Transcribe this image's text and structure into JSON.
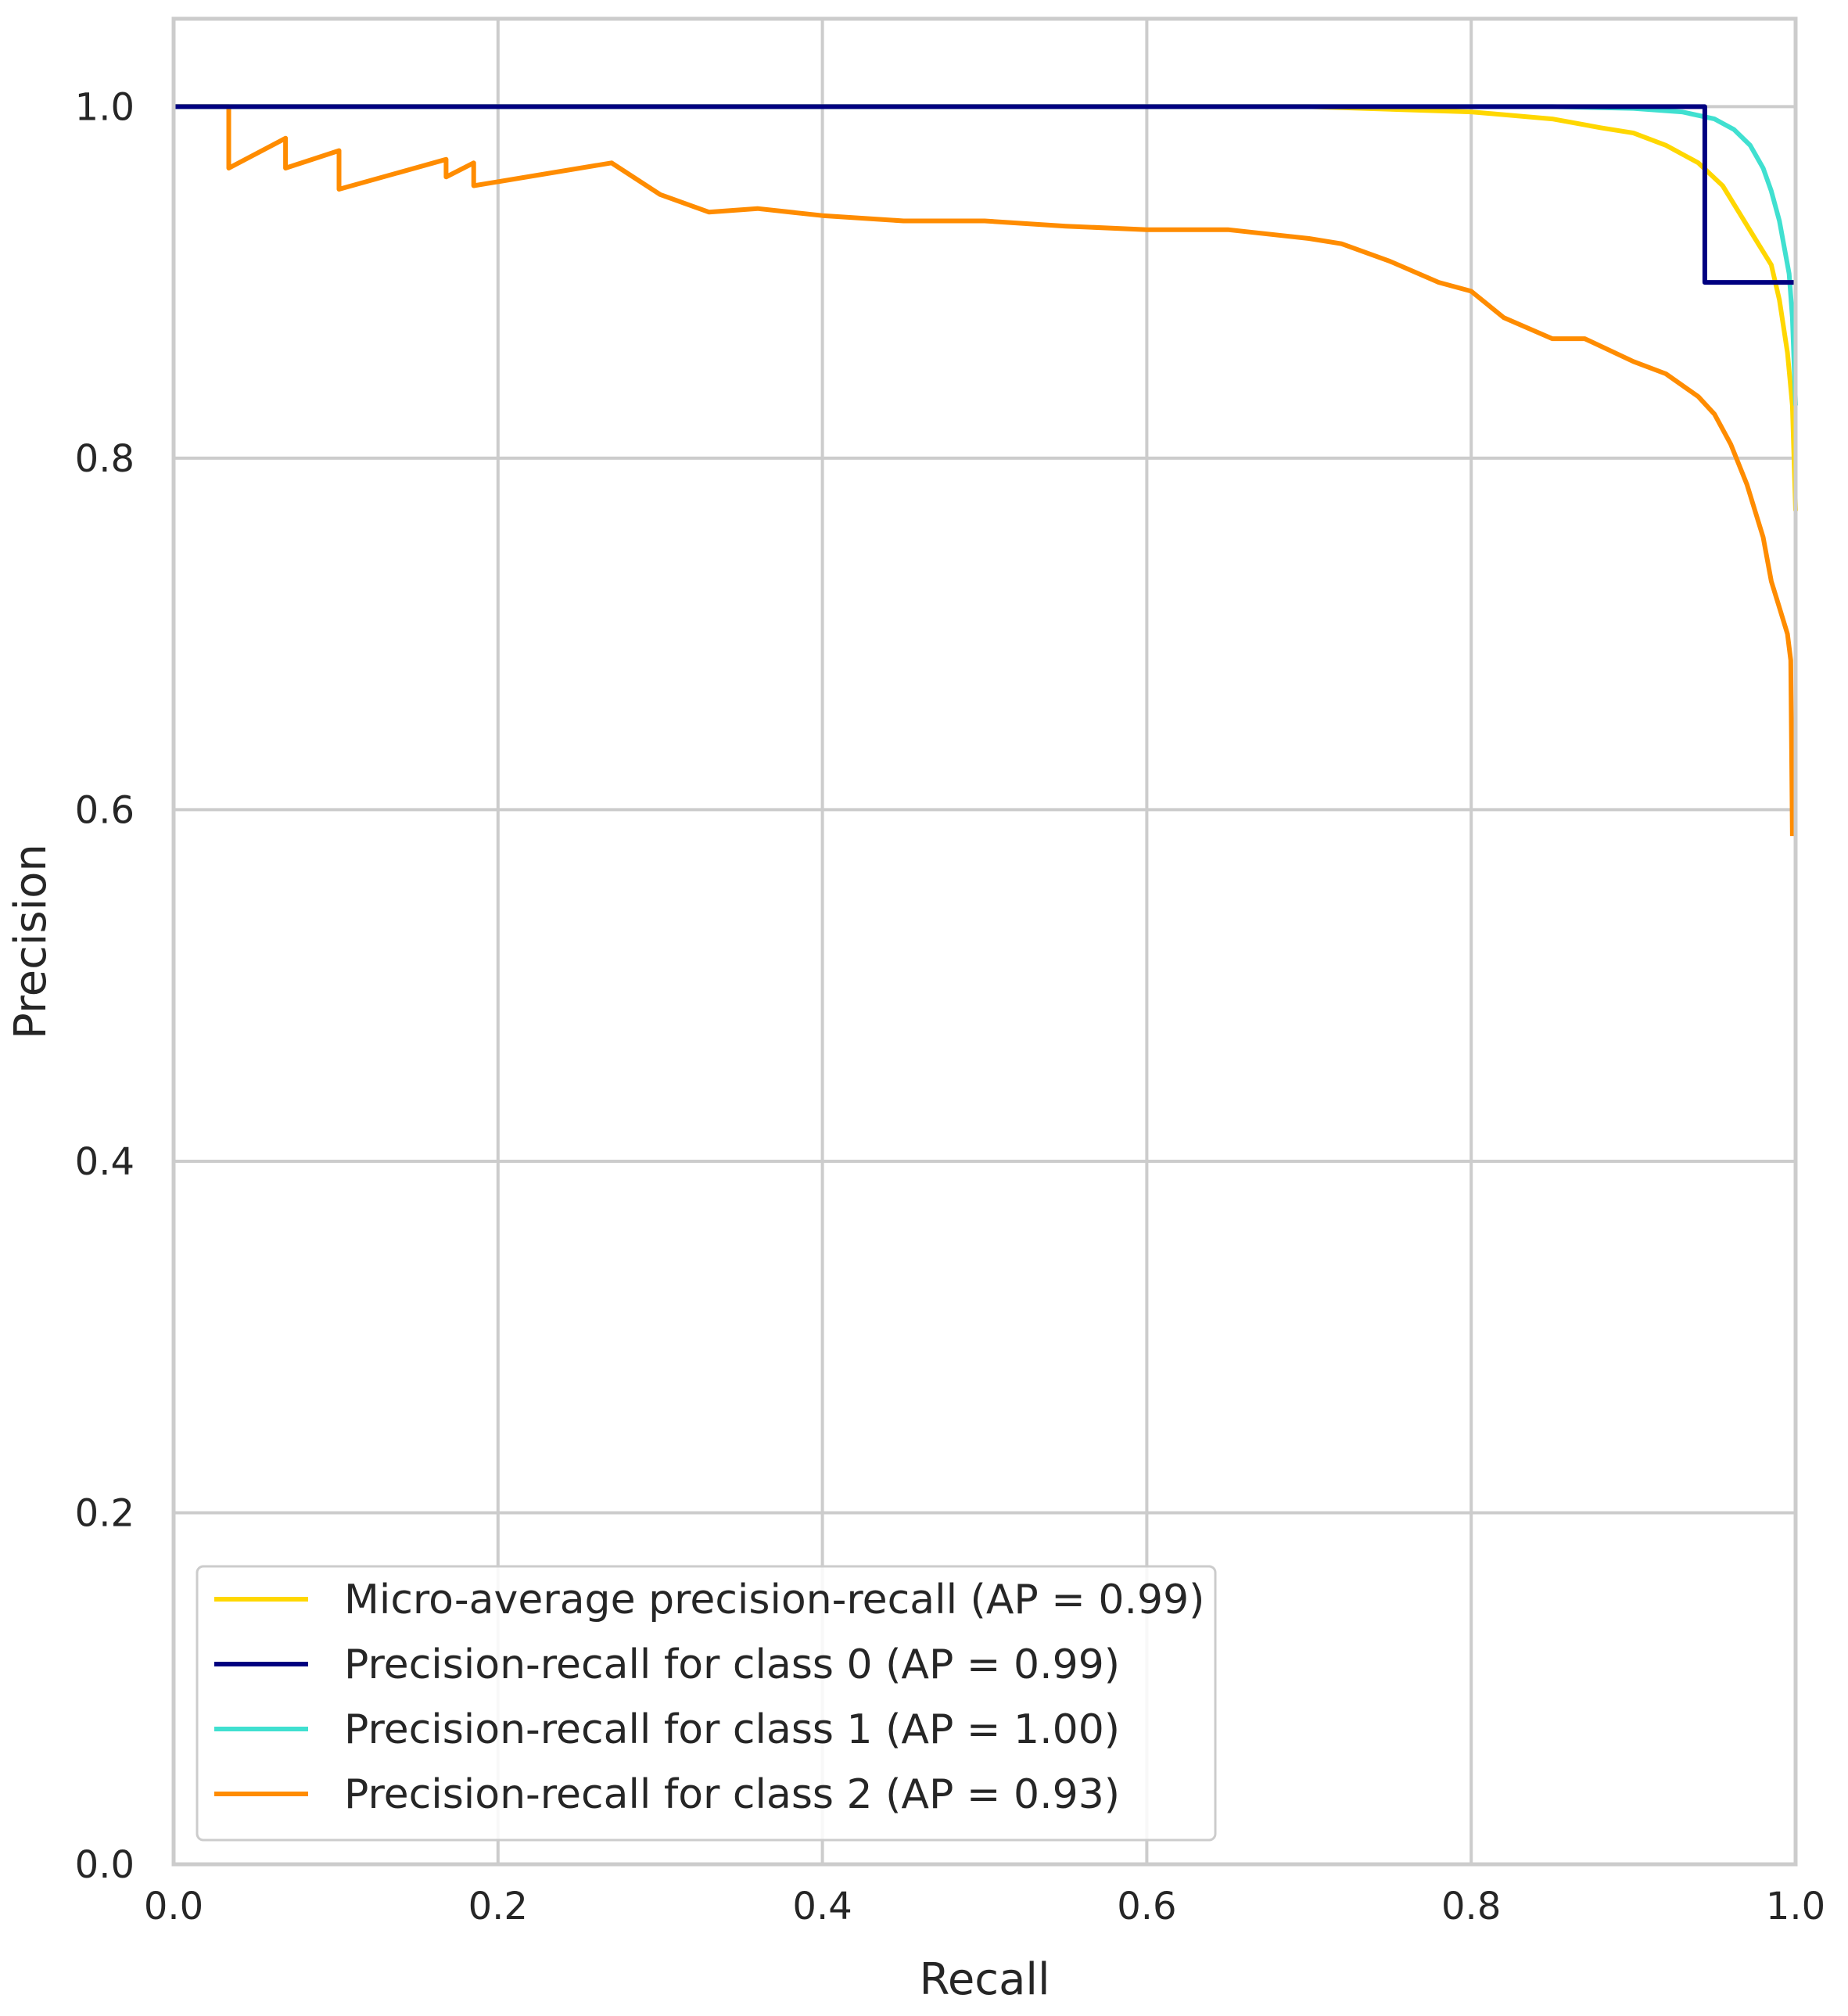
{
  "chart_data": {
    "type": "line",
    "title": "",
    "xlabel": "Recall",
    "ylabel": "Precision",
    "xlim": [
      0.0,
      1.0
    ],
    "ylim": [
      0.0,
      1.05
    ],
    "xticks": [
      "0.0",
      "0.2",
      "0.4",
      "0.6",
      "0.8",
      "1.0"
    ],
    "yticks": [
      "0.0",
      "0.2",
      "0.4",
      "0.6",
      "0.8",
      "1.0"
    ],
    "grid": true,
    "legend_position": "lower-left",
    "series": [
      {
        "name": "Micro-average precision-recall (AP = 0.99)",
        "color": "#ffd700",
        "x": [
          0.0,
          0.7,
          0.8,
          0.85,
          0.88,
          0.9,
          0.92,
          0.94,
          0.955,
          0.965,
          0.975,
          0.985,
          0.99,
          0.995,
          0.998,
          1.0
        ],
        "y": [
          1.0,
          1.0,
          0.997,
          0.993,
          0.988,
          0.985,
          0.978,
          0.968,
          0.955,
          0.94,
          0.925,
          0.91,
          0.89,
          0.86,
          0.83,
          0.77
        ]
      },
      {
        "name": "Precision-recall for class 0 (AP = 0.99)",
        "color": "#000080",
        "x": [
          0.0,
          0.944,
          0.944,
          1.0
        ],
        "y": [
          1.0,
          1.0,
          0.9,
          0.9
        ]
      },
      {
        "name": "Precision-recall for class 1 (AP = 1.00)",
        "color": "#40e0d0",
        "x": [
          0.0,
          0.85,
          0.9,
          0.93,
          0.95,
          0.962,
          0.972,
          0.98,
          0.985,
          0.99,
          0.993,
          0.996,
          0.998,
          1.0
        ],
        "y": [
          1.0,
          1.0,
          0.999,
          0.997,
          0.993,
          0.987,
          0.978,
          0.965,
          0.952,
          0.935,
          0.92,
          0.905,
          0.88,
          0.83
        ]
      },
      {
        "name": "Precision-recall for class 2 (AP = 0.93)",
        "color": "#ff8c00",
        "x": [
          0.0,
          0.034,
          0.034,
          0.069,
          0.069,
          0.102,
          0.102,
          0.168,
          0.168,
          0.185,
          0.185,
          0.27,
          0.3,
          0.33,
          0.36,
          0.4,
          0.45,
          0.5,
          0.55,
          0.6,
          0.65,
          0.7,
          0.72,
          0.75,
          0.78,
          0.8,
          0.82,
          0.85,
          0.87,
          0.9,
          0.92,
          0.94,
          0.95,
          0.96,
          0.97,
          0.98,
          0.985,
          0.99,
          0.995,
          0.997,
          0.998
        ],
        "y": [
          1.0,
          1.0,
          0.965,
          0.982,
          0.965,
          0.975,
          0.953,
          0.97,
          0.96,
          0.968,
          0.955,
          0.968,
          0.95,
          0.94,
          0.942,
          0.938,
          0.935,
          0.935,
          0.932,
          0.93,
          0.93,
          0.925,
          0.922,
          0.912,
          0.9,
          0.895,
          0.88,
          0.868,
          0.868,
          0.855,
          0.848,
          0.835,
          0.825,
          0.808,
          0.785,
          0.755,
          0.73,
          0.715,
          0.7,
          0.685,
          0.585
        ]
      }
    ]
  }
}
